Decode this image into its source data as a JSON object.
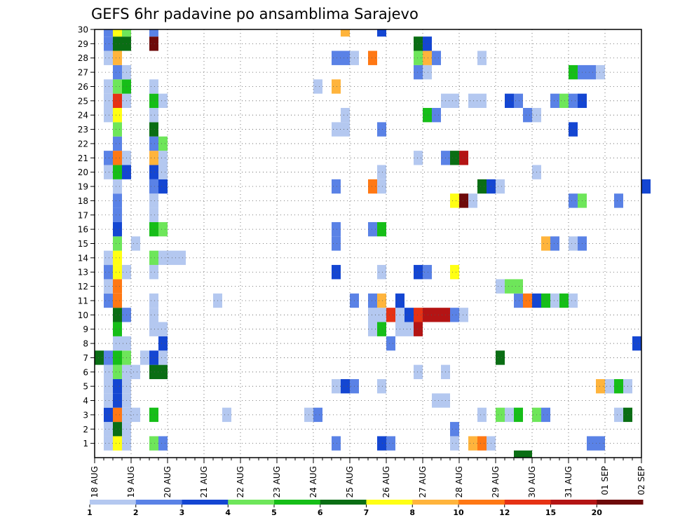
{
  "chart_data": {
    "type": "heatmap",
    "title": "GEFS 6hr padavine po ansamblima Sarajevo",
    "y_tick_labels": [
      "1",
      "2",
      "3",
      "4",
      "5",
      "6",
      "7",
      "8",
      "9",
      "10",
      "11",
      "12",
      "13",
      "14",
      "15",
      "16",
      "17",
      "18",
      "19",
      "20",
      "21",
      "22",
      "23",
      "24",
      "25",
      "26",
      "27",
      "28",
      "29",
      "30"
    ],
    "x_tick_labels": [
      "18 AUG",
      "19 AUG",
      "20 AUG",
      "21 AUG",
      "22 AUG",
      "23 AUG",
      "24 AUG",
      "25 AUG",
      "26 AUG",
      "27 AUG",
      "28 AUG",
      "29 AUG",
      "30 AUG",
      "31 AUG",
      "01 SEP",
      "02 SEP"
    ],
    "x_range_days": [
      0,
      15
    ],
    "y_range": [
      0,
      30
    ],
    "grid": true,
    "colorbar": {
      "levels": [
        "1",
        "2",
        "3",
        "4",
        "5",
        "6",
        "7",
        "8",
        "10",
        "12",
        "15",
        "20"
      ],
      "colors": [
        "#b4c8f0",
        "#5a82e6",
        "#1446d2",
        "#6ee65a",
        "#16be18",
        "#0a6e14",
        "#ffff14",
        "#ffb43c",
        "#ff7814",
        "#e63214",
        "#b41414",
        "#6e0a0a"
      ]
    },
    "cell_width_days": 0.25,
    "cells": [
      [
        1,
        0.25,
        1
      ],
      [
        1,
        0.5,
        7
      ],
      [
        1,
        0.75,
        1
      ],
      [
        1,
        1.5,
        4
      ],
      [
        1,
        1.75,
        2
      ],
      [
        1,
        6.5,
        2
      ],
      [
        1,
        7.75,
        3
      ],
      [
        1,
        8,
        2
      ],
      [
        1,
        9.75,
        1
      ],
      [
        1,
        10.25,
        8
      ],
      [
        1,
        10.5,
        9
      ],
      [
        1,
        10.75,
        1
      ],
      [
        1,
        13.5,
        2
      ],
      [
        1,
        13.75,
        2
      ],
      [
        2,
        0.25,
        1
      ],
      [
        2,
        0.5,
        6
      ],
      [
        2,
        0.75,
        1
      ],
      [
        2,
        9.75,
        2
      ],
      [
        3,
        0.25,
        3
      ],
      [
        3,
        0.5,
        9
      ],
      [
        3,
        0.75,
        1
      ],
      [
        3,
        1.0,
        1
      ],
      [
        3,
        1.5,
        5
      ],
      [
        3,
        3.5,
        1
      ],
      [
        3,
        5.75,
        1
      ],
      [
        3,
        6,
        2
      ],
      [
        3,
        10.5,
        1
      ],
      [
        3,
        11,
        4
      ],
      [
        3,
        11.25,
        1
      ],
      [
        3,
        11.5,
        5
      ],
      [
        3,
        12,
        4
      ],
      [
        3,
        12.25,
        2
      ],
      [
        3,
        14.25,
        1
      ],
      [
        3,
        14.5,
        6
      ],
      [
        4,
        0.25,
        1
      ],
      [
        4,
        0.5,
        3
      ],
      [
        4,
        0.75,
        1
      ],
      [
        4,
        9.25,
        1
      ],
      [
        4,
        9.5,
        1
      ],
      [
        5,
        0.25,
        1
      ],
      [
        5,
        0.5,
        3
      ],
      [
        5,
        0.75,
        1
      ],
      [
        5,
        6.5,
        1
      ],
      [
        5,
        6.75,
        3
      ],
      [
        5,
        7,
        2
      ],
      [
        5,
        7.75,
        1
      ],
      [
        5,
        13.75,
        8
      ],
      [
        5,
        14,
        1
      ],
      [
        5,
        14.25,
        5
      ],
      [
        5,
        14.5,
        1
      ],
      [
        6,
        0.25,
        1
      ],
      [
        6,
        0.5,
        4
      ],
      [
        6,
        0.75,
        1
      ],
      [
        6,
        1.0,
        1
      ],
      [
        6,
        1.5,
        6
      ],
      [
        6,
        1.75,
        6
      ],
      [
        6,
        8.75,
        1
      ],
      [
        6,
        9.5,
        1
      ],
      [
        7,
        0.0,
        6
      ],
      [
        7,
        0.25,
        2
      ],
      [
        7,
        0.5,
        5
      ],
      [
        7,
        0.75,
        4
      ],
      [
        7,
        1.25,
        1
      ],
      [
        7,
        1.5,
        3
      ],
      [
        7,
        1.75,
        1
      ],
      [
        7,
        11,
        6
      ],
      [
        8,
        0.5,
        1
      ],
      [
        8,
        0.75,
        1
      ],
      [
        8,
        1.75,
        3
      ],
      [
        8,
        8,
        2
      ],
      [
        8,
        14.75,
        3
      ],
      [
        9,
        0.5,
        5
      ],
      [
        9,
        1.5,
        1
      ],
      [
        9,
        1.75,
        1
      ],
      [
        9,
        7.5,
        1
      ],
      [
        9,
        7.75,
        5
      ],
      [
        9,
        8.25,
        1
      ],
      [
        9,
        8.5,
        1
      ],
      [
        9,
        8.75,
        11
      ],
      [
        10,
        0.5,
        6
      ],
      [
        10,
        0.75,
        2
      ],
      [
        10,
        1.5,
        1
      ],
      [
        10,
        7.5,
        1
      ],
      [
        10,
        7.75,
        1
      ],
      [
        10,
        8,
        10
      ],
      [
        10,
        8.25,
        1
      ],
      [
        10,
        8.5,
        3
      ],
      [
        10,
        8.75,
        10
      ],
      [
        10,
        9,
        11
      ],
      [
        10,
        9.25,
        11
      ],
      [
        10,
        9.5,
        11
      ],
      [
        10,
        9.75,
        2
      ],
      [
        10,
        10,
        1
      ],
      [
        11,
        0.25,
        2
      ],
      [
        11,
        0.5,
        9
      ],
      [
        11,
        1.5,
        1
      ],
      [
        11,
        3.25,
        1
      ],
      [
        11,
        7,
        2
      ],
      [
        11,
        7.5,
        2
      ],
      [
        11,
        7.75,
        8
      ],
      [
        11,
        8.25,
        3
      ],
      [
        11,
        11.5,
        2
      ],
      [
        11,
        11.75,
        9
      ],
      [
        11,
        12,
        3
      ],
      [
        11,
        12.25,
        5
      ],
      [
        11,
        12.5,
        1
      ],
      [
        11,
        12.75,
        5
      ],
      [
        11,
        13,
        1
      ],
      [
        12,
        0.25,
        1
      ],
      [
        12,
        0.5,
        9
      ],
      [
        12,
        11,
        1
      ],
      [
        12,
        11.25,
        4
      ],
      [
        12,
        11.5,
        4
      ],
      [
        13,
        0.25,
        2
      ],
      [
        13,
        0.5,
        7
      ],
      [
        13,
        0.75,
        1
      ],
      [
        13,
        1.5,
        1
      ],
      [
        13,
        6.5,
        3
      ],
      [
        13,
        7.75,
        1
      ],
      [
        13,
        8.75,
        3
      ],
      [
        13,
        9,
        2
      ],
      [
        13,
        9.75,
        7
      ],
      [
        14,
        0.25,
        1
      ],
      [
        14,
        0.5,
        7
      ],
      [
        14,
        1.5,
        4
      ],
      [
        14,
        1.75,
        1
      ],
      [
        14,
        2,
        1
      ],
      [
        14,
        2.25,
        1
      ],
      [
        15,
        0.5,
        4
      ],
      [
        15,
        1.0,
        1
      ],
      [
        15,
        6.5,
        2
      ],
      [
        15,
        12.25,
        8
      ],
      [
        15,
        12.5,
        2
      ],
      [
        15,
        13,
        1
      ],
      [
        15,
        13.25,
        2
      ],
      [
        16,
        0.5,
        3
      ],
      [
        16,
        1.5,
        5
      ],
      [
        16,
        1.75,
        4
      ],
      [
        16,
        6.5,
        2
      ],
      [
        16,
        7.5,
        2
      ],
      [
        16,
        7.75,
        5
      ],
      [
        17,
        0.5,
        2
      ],
      [
        17,
        1.5,
        1
      ],
      [
        18,
        0.5,
        2
      ],
      [
        18,
        1.5,
        1
      ],
      [
        18,
        9.75,
        7
      ],
      [
        18,
        10,
        12
      ],
      [
        18,
        10.25,
        1
      ],
      [
        18,
        13,
        2
      ],
      [
        18,
        13.25,
        4
      ],
      [
        18,
        14.25,
        2
      ],
      [
        19,
        0.5,
        1
      ],
      [
        19,
        1.5,
        2
      ],
      [
        19,
        1.75,
        3
      ],
      [
        19,
        6.5,
        2
      ],
      [
        19,
        7.5,
        9
      ],
      [
        19,
        7.75,
        1
      ],
      [
        19,
        10.5,
        6
      ],
      [
        19,
        10.75,
        3
      ],
      [
        19,
        11,
        1
      ],
      [
        19,
        15,
        3
      ],
      [
        20,
        0.25,
        1
      ],
      [
        20,
        0.5,
        5
      ],
      [
        20,
        0.75,
        3
      ],
      [
        20,
        1.5,
        3
      ],
      [
        20,
        1.75,
        1
      ],
      [
        20,
        7.75,
        1
      ],
      [
        20,
        12,
        1
      ],
      [
        21,
        0.25,
        2
      ],
      [
        21,
        0.5,
        9
      ],
      [
        21,
        0.75,
        1
      ],
      [
        21,
        1.5,
        8
      ],
      [
        21,
        1.75,
        1
      ],
      [
        21,
        8.75,
        1
      ],
      [
        21,
        9.5,
        2
      ],
      [
        21,
        9.75,
        6
      ],
      [
        21,
        10,
        11
      ],
      [
        22,
        0.5,
        2
      ],
      [
        22,
        1.5,
        2
      ],
      [
        22,
        1.75,
        4
      ],
      [
        23,
        0.5,
        4
      ],
      [
        23,
        1.5,
        6
      ],
      [
        23,
        6.5,
        1
      ],
      [
        23,
        6.75,
        1
      ],
      [
        23,
        7.75,
        2
      ],
      [
        23,
        13,
        3
      ],
      [
        24,
        0.25,
        1
      ],
      [
        24,
        0.5,
        7
      ],
      [
        24,
        1.5,
        1
      ],
      [
        24,
        6.75,
        1
      ],
      [
        24,
        9,
        5
      ],
      [
        24,
        9.25,
        2
      ],
      [
        24,
        11.75,
        2
      ],
      [
        24,
        12,
        1
      ],
      [
        25,
        0.25,
        1
      ],
      [
        25,
        0.5,
        10
      ],
      [
        25,
        0.75,
        1
      ],
      [
        25,
        1.5,
        5
      ],
      [
        25,
        1.75,
        1
      ],
      [
        25,
        9.5,
        1
      ],
      [
        25,
        9.75,
        1
      ],
      [
        25,
        10.25,
        1
      ],
      [
        25,
        10.5,
        1
      ],
      [
        25,
        11.25,
        3
      ],
      [
        25,
        11.5,
        2
      ],
      [
        25,
        12.5,
        2
      ],
      [
        25,
        12.75,
        4
      ],
      [
        25,
        13,
        2
      ],
      [
        25,
        13.25,
        3
      ],
      [
        26,
        0.25,
        1
      ],
      [
        26,
        0.5,
        4
      ],
      [
        26,
        0.75,
        5
      ],
      [
        26,
        1.5,
        1
      ],
      [
        26,
        6,
        1
      ],
      [
        26,
        6.5,
        8
      ],
      [
        27,
        0.5,
        2
      ],
      [
        27,
        0.75,
        1
      ],
      [
        27,
        8.75,
        2
      ],
      [
        27,
        9,
        1
      ],
      [
        27,
        13,
        5
      ],
      [
        27,
        13.25,
        2
      ],
      [
        27,
        13.5,
        2
      ],
      [
        27,
        13.75,
        1
      ],
      [
        28,
        0.25,
        1
      ],
      [
        28,
        0.5,
        8
      ],
      [
        28,
        6.5,
        2
      ],
      [
        28,
        6.75,
        2
      ],
      [
        28,
        7,
        1
      ],
      [
        28,
        7.5,
        9
      ],
      [
        28,
        8.75,
        4
      ],
      [
        28,
        9,
        8
      ],
      [
        28,
        9.25,
        2
      ],
      [
        28,
        10.5,
        1
      ],
      [
        29,
        0.25,
        2
      ],
      [
        29,
        0.5,
        6
      ],
      [
        29,
        0.75,
        6
      ],
      [
        29,
        1.5,
        12
      ],
      [
        29,
        8.75,
        6
      ],
      [
        29,
        9,
        3
      ],
      [
        30,
        0.25,
        2
      ],
      [
        30,
        0.5,
        7
      ],
      [
        30,
        0.75,
        4
      ],
      [
        30,
        1.5,
        2
      ],
      [
        30,
        6.75,
        8
      ],
      [
        30,
        7.75,
        3
      ],
      [
        0,
        11.5,
        6
      ],
      [
        0,
        11.75,
        6
      ]
    ]
  }
}
